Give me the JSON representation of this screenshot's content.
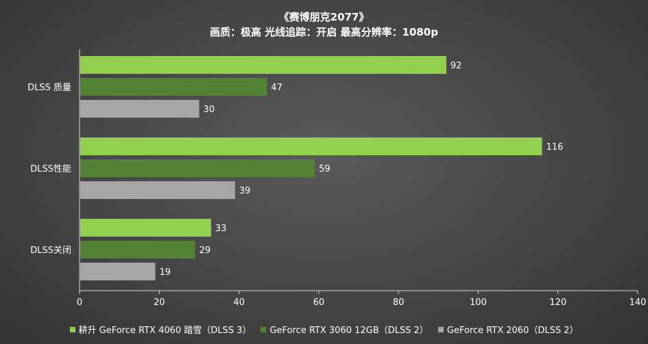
{
  "chart_data": {
    "type": "bar",
    "orientation": "horizontal",
    "title": "《赛博朋克2077》",
    "subtitle": "画质：极高  光线追踪：开启  最高分辨率：1080p",
    "categories": [
      "DLSS 质量",
      "DLSS性能",
      "DLSS关闭"
    ],
    "series": [
      {
        "name": "耕升 GeForce RTX 4060 踏雪（DLSS 3）",
        "color": "#92d050",
        "values": [
          92,
          116,
          33
        ]
      },
      {
        "name": "GeForce RTX 3060 12GB（DLSS 2）",
        "color": "#548235",
        "values": [
          47,
          59,
          29
        ]
      },
      {
        "name": "GeForce RTX 2060（DLSS 2）",
        "color": "#a6a6a6",
        "values": [
          30,
          39,
          19
        ]
      }
    ],
    "xlim": [
      0,
      140
    ],
    "xticks": [
      0,
      20,
      40,
      60,
      80,
      100,
      120,
      140
    ],
    "grid": false,
    "legend_position": "bottom"
  }
}
